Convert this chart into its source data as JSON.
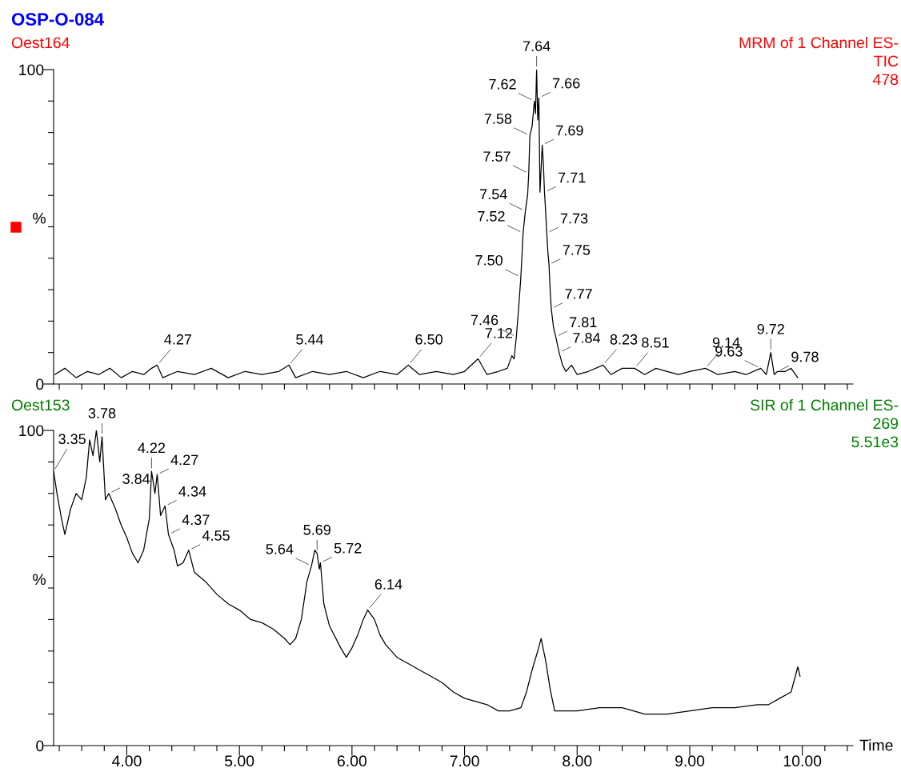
{
  "chart_data": [
    {
      "type": "line",
      "title": "OSP-O-084",
      "subtitle": "Oest164",
      "annotations": [
        "MRM of 1 Channel ES-",
        "TIC",
        "478",
        {
          "text": "4.27",
          "x": 4.27,
          "y": 6
        },
        {
          "text": "5.44",
          "x": 5.44,
          "y": 6
        },
        {
          "text": "6.50",
          "x": 6.5,
          "y": 6
        },
        {
          "text": "7.12",
          "x": 7.12,
          "y": 8
        },
        {
          "text": "7.46",
          "x": 7.46,
          "y": 15
        },
        {
          "text": "7.50",
          "x": 7.5,
          "y": 34
        },
        {
          "text": "7.52",
          "x": 7.52,
          "y": 48
        },
        {
          "text": "7.54",
          "x": 7.54,
          "y": 55
        },
        {
          "text": "7.57",
          "x": 7.57,
          "y": 67
        },
        {
          "text": "7.58",
          "x": 7.58,
          "y": 79
        },
        {
          "text": "7.62",
          "x": 7.62,
          "y": 90
        },
        {
          "text": "7.64",
          "x": 7.64,
          "y": 100
        },
        {
          "text": "7.66",
          "x": 7.66,
          "y": 91
        },
        {
          "text": "7.69",
          "x": 7.69,
          "y": 76
        },
        {
          "text": "7.71",
          "x": 7.71,
          "y": 61
        },
        {
          "text": "7.73",
          "x": 7.73,
          "y": 48
        },
        {
          "text": "7.75",
          "x": 7.75,
          "y": 38
        },
        {
          "text": "7.77",
          "x": 7.77,
          "y": 24
        },
        {
          "text": "7.81",
          "x": 7.81,
          "y": 15
        },
        {
          "text": "7.84",
          "x": 7.84,
          "y": 10
        },
        {
          "text": "8.23",
          "x": 8.23,
          "y": 6
        },
        {
          "text": "8.51",
          "x": 8.51,
          "y": 5
        },
        {
          "text": "9.14",
          "x": 9.14,
          "y": 5
        },
        {
          "text": "9.63",
          "x": 9.63,
          "y": 5
        },
        {
          "text": "9.72",
          "x": 9.72,
          "y": 10
        },
        {
          "text": "9.78",
          "x": 9.78,
          "y": 4
        }
      ],
      "ylabel": "%",
      "xlim": [
        3.35,
        10.45
      ],
      "ylim": [
        0,
        100
      ],
      "xticks": [
        {
          "value": 3.4,
          "label": null
        },
        {
          "value": 3.6,
          "label": null
        },
        {
          "value": 3.8,
          "label": null
        },
        {
          "value": 4.0,
          "label": null
        },
        {
          "value": 4.2,
          "label": null
        },
        {
          "value": 4.4,
          "label": null
        },
        {
          "value": 4.6,
          "label": null
        },
        {
          "value": 4.8,
          "label": null
        },
        {
          "value": 5.0,
          "label": null
        },
        {
          "value": 5.2,
          "label": null
        },
        {
          "value": 5.4,
          "label": null
        },
        {
          "value": 5.6,
          "label": null
        },
        {
          "value": 5.8,
          "label": null
        },
        {
          "value": 6.0,
          "label": null
        },
        {
          "value": 6.2,
          "label": null
        },
        {
          "value": 6.4,
          "label": null
        },
        {
          "value": 6.6,
          "label": null
        },
        {
          "value": 6.8,
          "label": null
        },
        {
          "value": 7.0,
          "label": null
        },
        {
          "value": 7.2,
          "label": null
        },
        {
          "value": 7.4,
          "label": null
        },
        {
          "value": 7.6,
          "label": null
        },
        {
          "value": 7.8,
          "label": null
        },
        {
          "value": 8.0,
          "label": null
        },
        {
          "value": 8.2,
          "label": null
        },
        {
          "value": 8.4,
          "label": null
        },
        {
          "value": 8.6,
          "label": null
        },
        {
          "value": 8.8,
          "label": null
        },
        {
          "value": 9.0,
          "label": null
        },
        {
          "value": 9.2,
          "label": null
        },
        {
          "value": 9.4,
          "label": null
        },
        {
          "value": 9.6,
          "label": null
        },
        {
          "value": 9.8,
          "label": null
        },
        {
          "value": 10.0,
          "label": null
        },
        {
          "value": 10.2,
          "label": null
        },
        {
          "value": 10.4,
          "label": null
        }
      ],
      "yticks": [
        0,
        {
          "value": 10,
          "label": null
        },
        {
          "value": 20,
          "label": null
        },
        {
          "value": 30,
          "label": null
        },
        {
          "value": 40,
          "label": null
        },
        {
          "value": 50,
          "label": null
        },
        {
          "value": 60,
          "label": null
        },
        {
          "value": 70,
          "label": null
        },
        {
          "value": 80,
          "label": null
        },
        {
          "value": 90,
          "label": null
        },
        100
      ],
      "tick_labels": "y",
      "grid": false,
      "legend": false,
      "series": [
        {
          "color": "#000000",
          "x": [
            3.36,
            3.45,
            3.55,
            3.65,
            3.75,
            3.85,
            3.95,
            4.05,
            4.15,
            4.22,
            4.27,
            4.32,
            4.45,
            4.6,
            4.75,
            4.9,
            5.05,
            5.2,
            5.35,
            5.44,
            5.5,
            5.65,
            5.8,
            5.95,
            6.1,
            6.25,
            6.4,
            6.5,
            6.6,
            6.75,
            6.9,
            7.0,
            7.12,
            7.2,
            7.3,
            7.38,
            7.42,
            7.44,
            7.46,
            7.48,
            7.5,
            7.52,
            7.54,
            7.56,
            7.57,
            7.58,
            7.6,
            7.62,
            7.63,
            7.64,
            7.65,
            7.66,
            7.67,
            7.69,
            7.7,
            7.71,
            7.72,
            7.73,
            7.74,
            7.75,
            7.76,
            7.77,
            7.79,
            7.81,
            7.84,
            7.87,
            7.9,
            7.95,
            8.0,
            8.1,
            8.23,
            8.3,
            8.4,
            8.51,
            8.6,
            8.7,
            8.8,
            8.9,
            9.0,
            9.14,
            9.25,
            9.4,
            9.5,
            9.63,
            9.68,
            9.72,
            9.75,
            9.78,
            9.85,
            9.9,
            9.96
          ],
          "values": [
            3,
            5,
            2,
            4,
            3,
            5,
            2,
            4,
            3,
            5,
            6,
            2,
            4,
            3,
            5,
            2,
            4,
            3,
            4,
            6,
            2,
            4,
            3,
            4,
            2,
            4,
            3,
            6,
            3,
            4,
            3,
            4,
            8,
            3,
            4,
            5,
            9,
            8,
            15,
            24,
            34,
            48,
            55,
            60,
            67,
            79,
            82,
            90,
            86,
            100,
            84,
            91,
            61,
            76,
            70,
            61,
            55,
            48,
            42,
            38,
            30,
            24,
            18,
            15,
            10,
            6,
            4,
            6,
            3,
            4,
            6,
            3,
            5,
            5,
            3,
            5,
            4,
            3,
            4,
            5,
            3,
            4,
            3,
            5,
            3,
            10,
            3,
            4,
            4,
            5,
            2
          ]
        }
      ]
    },
    {
      "type": "line",
      "title": "Oest153",
      "xlabel": "Time",
      "annotations": [
        "SIR of 1 Channel ES-",
        "269",
        "5.51e3",
        {
          "text": "3.35",
          "x": 3.35,
          "y": 87
        },
        {
          "text": "3.78",
          "x": 3.78,
          "y": 98
        },
        {
          "text": "3.84",
          "x": 3.84,
          "y": 80
        },
        {
          "text": "4.22",
          "x": 4.22,
          "y": 87
        },
        {
          "text": "4.27",
          "x": 4.27,
          "y": 86
        },
        {
          "text": "4.34",
          "x": 4.34,
          "y": 76
        },
        {
          "text": "4.37",
          "x": 4.37,
          "y": 67
        },
        {
          "text": "4.55",
          "x": 4.55,
          "y": 62
        },
        {
          "text": "5.64",
          "x": 5.64,
          "y": 57
        },
        {
          "text": "5.69",
          "x": 5.69,
          "y": 61
        },
        {
          "text": "5.72",
          "x": 5.72,
          "y": 58
        },
        {
          "text": "6.14",
          "x": 6.14,
          "y": 43
        }
      ],
      "ylabel": "%",
      "xlim": [
        3.35,
        10.45
      ],
      "ylim": [
        0,
        100
      ],
      "xticks": [
        {
          "value": 3.4,
          "label": null
        },
        {
          "value": 3.6,
          "label": null
        },
        {
          "value": 3.8,
          "label": null
        },
        {
          "value": 4.0,
          "label": "4.00"
        },
        {
          "value": 4.2,
          "label": null
        },
        {
          "value": 4.4,
          "label": null
        },
        {
          "value": 4.6,
          "label": null
        },
        {
          "value": 4.8,
          "label": null
        },
        {
          "value": 5.0,
          "label": "5.00"
        },
        {
          "value": 5.2,
          "label": null
        },
        {
          "value": 5.4,
          "label": null
        },
        {
          "value": 5.6,
          "label": null
        },
        {
          "value": 5.8,
          "label": null
        },
        {
          "value": 6.0,
          "label": "6.00"
        },
        {
          "value": 6.2,
          "label": null
        },
        {
          "value": 6.4,
          "label": null
        },
        {
          "value": 6.6,
          "label": null
        },
        {
          "value": 6.8,
          "label": null
        },
        {
          "value": 7.0,
          "label": "7.00"
        },
        {
          "value": 7.2,
          "label": null
        },
        {
          "value": 7.4,
          "label": null
        },
        {
          "value": 7.6,
          "label": null
        },
        {
          "value": 7.8,
          "label": null
        },
        {
          "value": 8.0,
          "label": "8.00"
        },
        {
          "value": 8.2,
          "label": null
        },
        {
          "value": 8.4,
          "label": null
        },
        {
          "value": 8.6,
          "label": null
        },
        {
          "value": 8.8,
          "label": null
        },
        {
          "value": 9.0,
          "label": "9.00"
        },
        {
          "value": 9.2,
          "label": null
        },
        {
          "value": 9.4,
          "label": null
        },
        {
          "value": 9.6,
          "label": null
        },
        {
          "value": 9.8,
          "label": null
        },
        {
          "value": 10.0,
          "label": "10.00"
        },
        {
          "value": 10.2,
          "label": null
        },
        {
          "value": 10.4,
          "label": null
        }
      ],
      "yticks": [
        0,
        {
          "value": 10,
          "label": null
        },
        {
          "value": 20,
          "label": null
        },
        {
          "value": 30,
          "label": null
        },
        {
          "value": 40,
          "label": null
        },
        {
          "value": 50,
          "label": null
        },
        {
          "value": 60,
          "label": null
        },
        {
          "value": 70,
          "label": null
        },
        {
          "value": 80,
          "label": null
        },
        {
          "value": 90,
          "label": null
        },
        100
      ],
      "grid": false,
      "legend": false,
      "series": [
        {
          "color": "#000000",
          "x": [
            3.35,
            3.38,
            3.42,
            3.45,
            3.5,
            3.55,
            3.6,
            3.64,
            3.67,
            3.7,
            3.73,
            3.76,
            3.78,
            3.81,
            3.84,
            3.9,
            3.95,
            4.0,
            4.05,
            4.1,
            4.15,
            4.2,
            4.22,
            4.25,
            4.27,
            4.3,
            4.34,
            4.37,
            4.42,
            4.45,
            4.5,
            4.55,
            4.6,
            4.7,
            4.8,
            4.9,
            5.0,
            5.1,
            5.2,
            5.3,
            5.4,
            5.45,
            5.5,
            5.55,
            5.6,
            5.64,
            5.67,
            5.69,
            5.71,
            5.72,
            5.75,
            5.8,
            5.9,
            5.95,
            6.0,
            6.05,
            6.1,
            6.14,
            6.2,
            6.25,
            6.3,
            6.4,
            6.5,
            6.6,
            6.7,
            6.8,
            6.9,
            7.0,
            7.1,
            7.2,
            7.3,
            7.4,
            7.5,
            7.55,
            7.6,
            7.65,
            7.68,
            7.72,
            7.76,
            7.8,
            7.9,
            8.0,
            8.2,
            8.4,
            8.5,
            8.6,
            8.8,
            9.0,
            9.2,
            9.4,
            9.6,
            9.7,
            9.8,
            9.9,
            9.96,
            9.98
          ],
          "values": [
            87,
            80,
            72,
            67,
            75,
            80,
            78,
            85,
            97,
            92,
            100,
            90,
            98,
            78,
            80,
            75,
            70,
            66,
            61,
            58,
            62,
            72,
            87,
            80,
            86,
            73,
            76,
            67,
            62,
            57,
            58,
            62,
            55,
            52,
            48,
            45,
            43,
            40,
            39,
            37,
            34,
            32,
            34,
            40,
            52,
            57,
            62,
            61,
            56,
            58,
            45,
            38,
            31,
            28,
            31,
            35,
            40,
            43,
            40,
            35,
            32,
            28,
            26,
            24,
            22,
            20,
            17,
            15,
            14,
            13,
            11,
            11,
            12,
            17,
            24,
            30,
            34,
            27,
            18,
            11,
            11,
            11,
            12,
            12,
            11,
            10,
            10,
            11,
            12,
            12,
            13,
            13,
            15,
            17,
            25,
            22
          ]
        }
      ]
    }
  ]
}
